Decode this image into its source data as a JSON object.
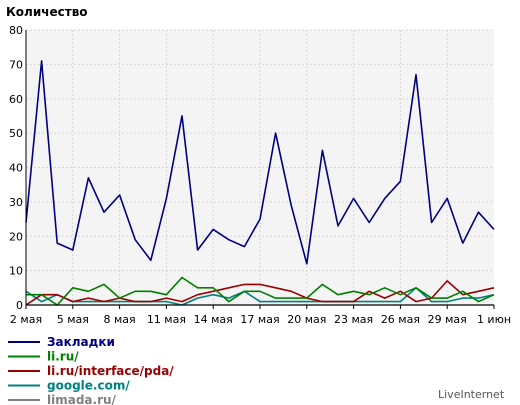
{
  "chart_data": {
    "type": "line",
    "title": "Количество",
    "brand": "LiveInternet",
    "ylim": [
      0,
      80
    ],
    "yticks": [
      "0",
      "10",
      "20",
      "30",
      "40",
      "50",
      "60",
      "70",
      "80"
    ],
    "grid": true,
    "legend_position": "bottom-left",
    "x_tick_labels": [
      "2 мая",
      "5 мая",
      "8 мая",
      "11 мая",
      "14 мая",
      "17 мая",
      "20 мая",
      "23 мая",
      "26 мая",
      "29 мая",
      "1 июн"
    ],
    "x": [
      "2 мая",
      "3 мая",
      "4 мая",
      "5 мая",
      "6 мая",
      "7 мая",
      "8 мая",
      "9 мая",
      "10 мая",
      "11 мая",
      "12 мая",
      "13 мая",
      "14 мая",
      "15 мая",
      "16 мая",
      "17 мая",
      "18 мая",
      "19 мая",
      "20 мая",
      "21 мая",
      "22 мая",
      "23 мая",
      "24 мая",
      "25 мая",
      "26 мая",
      "27 мая",
      "28 мая",
      "29 мая",
      "30 мая",
      "31 мая",
      "1 июн"
    ],
    "series": [
      {
        "name": "Закладки",
        "color": "#000080",
        "values": [
          24,
          71,
          18,
          16,
          37,
          27,
          32,
          19,
          13,
          31,
          55,
          16,
          22,
          19,
          17,
          25,
          50,
          29,
          12,
          45,
          23,
          31,
          24,
          31,
          36,
          67,
          24,
          31,
          18,
          27,
          22
        ]
      },
      {
        "name": "li.ru/",
        "color": "#008000",
        "values": [
          3,
          3,
          0,
          5,
          4,
          6,
          2,
          4,
          4,
          3,
          8,
          5,
          5,
          1,
          4,
          4,
          2,
          2,
          2,
          6,
          3,
          4,
          3,
          5,
          3,
          5,
          2,
          2,
          4,
          1,
          3
        ]
      },
      {
        "name": "li.ru/interface/pda/",
        "color": "#990000",
        "values": [
          0,
          3,
          3,
          1,
          2,
          1,
          2,
          1,
          1,
          2,
          1,
          3,
          4,
          5,
          6,
          6,
          5,
          4,
          2,
          1,
          1,
          1,
          4,
          2,
          4,
          1,
          2,
          7,
          3,
          4,
          5
        ]
      },
      {
        "name": "google.com/",
        "color": "#008080",
        "values": [
          4,
          1,
          3,
          1,
          1,
          1,
          1,
          1,
          1,
          1,
          0,
          2,
          3,
          2,
          4,
          1,
          1,
          1,
          1,
          1,
          1,
          1,
          1,
          1,
          1,
          5,
          1,
          1,
          2,
          2,
          3
        ]
      },
      {
        "name": "limada.ru/",
        "color": "#808080",
        "values": [
          0,
          0,
          0,
          0,
          0,
          0,
          0,
          0,
          0,
          0,
          0,
          0,
          0,
          0,
          0,
          0,
          0,
          0,
          0,
          0,
          0,
          0,
          0,
          0,
          0,
          0,
          0,
          0,
          0,
          0,
          0
        ]
      }
    ]
  }
}
